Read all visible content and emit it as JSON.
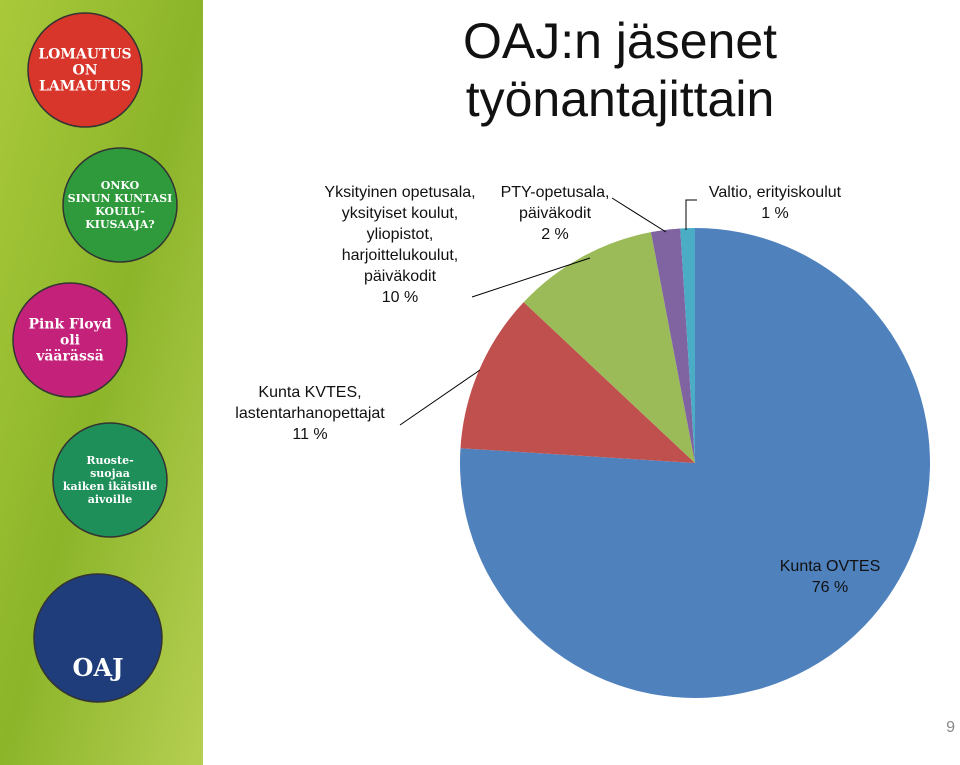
{
  "chart_data": {
    "type": "pie",
    "title": "OAJ:n jäsenet työnantajittain",
    "categories": [
      "Kunta OVTES",
      "Kunta KVTES, lastentarhanopettajat",
      "Yksityinen opetusala, yksityiset koulut, yliopistot, harjoittelukoulut, päiväkodit",
      "PTY-opetusala, päiväkodit",
      "Valtio, erityiskoulut"
    ],
    "values": [
      76,
      11,
      10,
      2,
      1
    ],
    "value_labels": [
      "76 %",
      "11 %",
      "10 %",
      "2 %",
      "1 %"
    ],
    "colors": [
      "#4f81bd",
      "#c0504d",
      "#9bbb59",
      "#8064a2",
      "#4bacc6"
    ],
    "start_angle": 0,
    "direction": "clockwise"
  },
  "badges": [
    [
      "LOMAUTUS",
      "ON",
      "LAMAUTUS"
    ],
    [
      "ONKO",
      "SINUN KUNTASI",
      "KOULU-",
      "KIUSAAJA?"
    ],
    [
      "Pink Floyd",
      "oli",
      "väärässä"
    ],
    [
      "Ruoste-",
      "suojaa",
      "kaiken ikäisille",
      "aivoille"
    ],
    [
      "OAJ"
    ]
  ],
  "slide_number": 9
}
